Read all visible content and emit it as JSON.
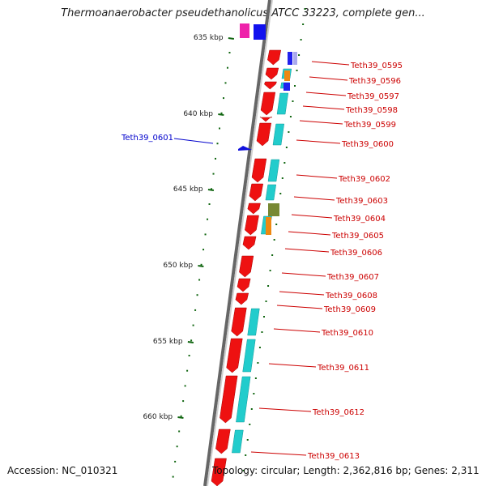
{
  "map": {
    "title": "Thermoanaerobacter pseudethanolicus ATCC 33223, complete gen...",
    "accession": "Accession: NC_010321",
    "topology": "Topology: circular; Length: 2,362,816 bp; Genes: 2,311",
    "kbp_ticks": [
      "635 kbp",
      "640 kbp",
      "645 kbp",
      "650 kbp",
      "655 kbp",
      "660 kbp"
    ],
    "gene_labels": [
      "Teth39_0595",
      "Teth39_0596",
      "Teth39_0597",
      "Teth39_0598",
      "Teth39_0599",
      "Teth39_0600",
      "Teth39_0602",
      "Teth39_0603",
      "Teth39_0604",
      "Teth39_0605",
      "Teth39_0606",
      "Teth39_0607",
      "Teth39_0608",
      "Teth39_0609",
      "Teth39_0610",
      "Teth39_0611",
      "Teth39_0612",
      "Teth39_0613"
    ],
    "left_gene_label": "Teth39_0601",
    "colors": {
      "gene_forward": "#ee1111",
      "cog_cyan": "#22cccc",
      "cog_orange": "#ee8811",
      "cog_olive": "#778833",
      "cog_blue": "#2222ee",
      "cog_magenta": "#ee22aa",
      "reverse_gene": "#1111dd",
      "label_red": "#cc0000",
      "label_blue": "#0000cc",
      "tick_green": "#116611",
      "backbone": "#777777"
    }
  }
}
